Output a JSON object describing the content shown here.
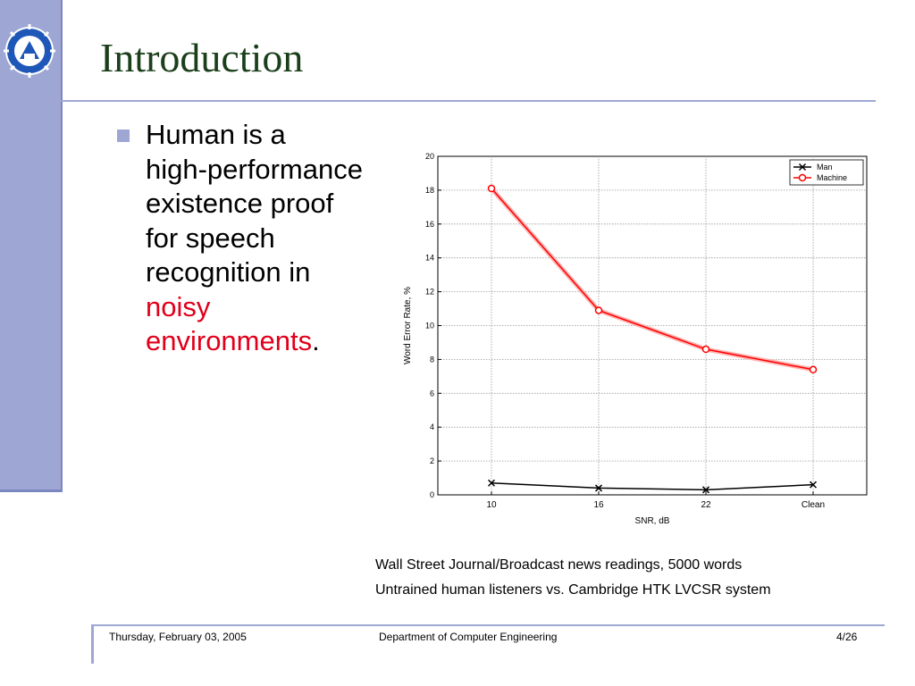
{
  "slide": {
    "title": "Introduction",
    "bullet": {
      "line1": "Human is a",
      "line2": "high-performance",
      "line3": "existence proof",
      "line4": "for speech",
      "line5": "recognition in",
      "line6_red": "noisy",
      "line7_red": "environments",
      "line7_tail": "."
    }
  },
  "caption": {
    "line1": "Wall Street Journal/Broadcast news readings, 5000 words",
    "line2": "Untrained human listeners vs. Cambridge HTK LVCSR system"
  },
  "footer": {
    "date": "Thursday, February 03, 2005",
    "department": "Department of Computer Engineering",
    "page": "4/26"
  },
  "colors": {
    "accent": "#9ea7d3",
    "title": "#1a3f1a",
    "highlight": "#e0001b",
    "man_series": "#000000",
    "machine_series": "#ff0000"
  },
  "chart_data": {
    "type": "line",
    "categories": [
      "10",
      "16",
      "22",
      "Clean"
    ],
    "series": [
      {
        "name": "Man",
        "values": [
          0.7,
          0.4,
          0.3,
          0.6
        ],
        "marker": "x"
      },
      {
        "name": "Machine",
        "values": [
          18.1,
          10.9,
          8.6,
          7.4
        ],
        "marker": "o"
      }
    ],
    "xlabel": "SNR, dB",
    "ylabel": "Word Error Rate, %",
    "ylim": [
      0,
      20
    ],
    "yticks": [
      0,
      2,
      4,
      6,
      8,
      10,
      12,
      14,
      16,
      18,
      20
    ],
    "grid": true,
    "legend_position": "top-right"
  }
}
